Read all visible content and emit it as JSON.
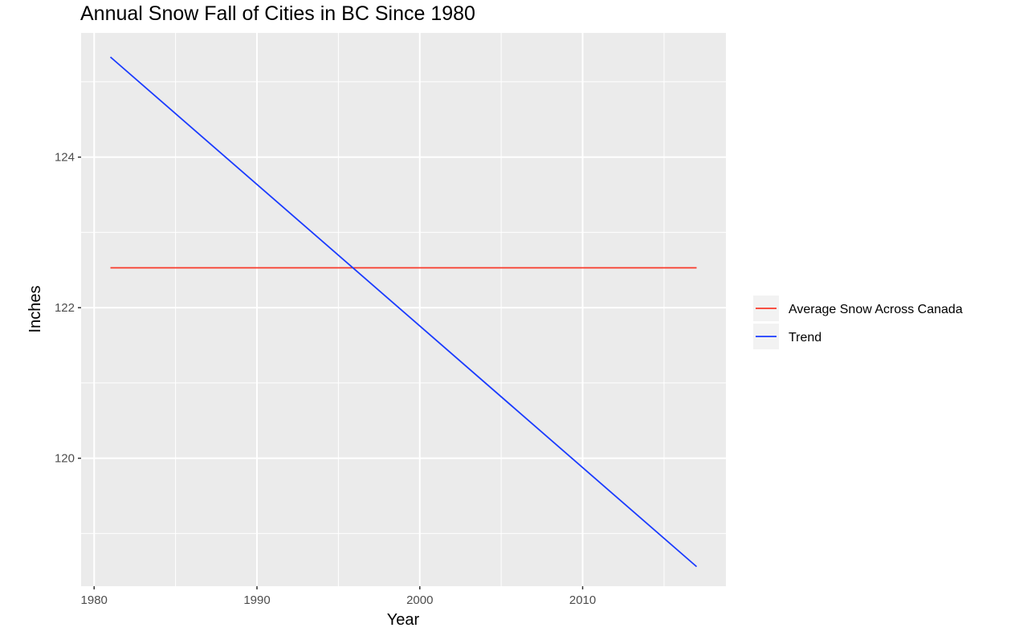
{
  "chart_data": {
    "type": "line",
    "title": "Annual Snow Fall of Cities in BC Since 1980",
    "xlabel": "Year",
    "ylabel": "Inches",
    "xlim": [
      1979.2,
      2018.8
    ],
    "ylim": [
      118.3,
      125.65
    ],
    "x_ticks": [
      1980,
      1990,
      2000,
      2010
    ],
    "y_ticks": [
      120,
      122,
      124
    ],
    "x_minor": [
      1985,
      1995,
      2005,
      2015
    ],
    "y_minor": [
      119,
      121,
      123,
      125
    ],
    "grid": true,
    "legend_position": "right",
    "series": [
      {
        "name": "Average Snow Across Canada",
        "color": "#F8392A",
        "x": [
          1981,
          2017
        ],
        "y": [
          122.53,
          122.53
        ]
      },
      {
        "name": "Trend",
        "color": "#1A3BFF",
        "x": [
          1981,
          2017
        ],
        "y": [
          125.33,
          118.56
        ]
      }
    ]
  }
}
